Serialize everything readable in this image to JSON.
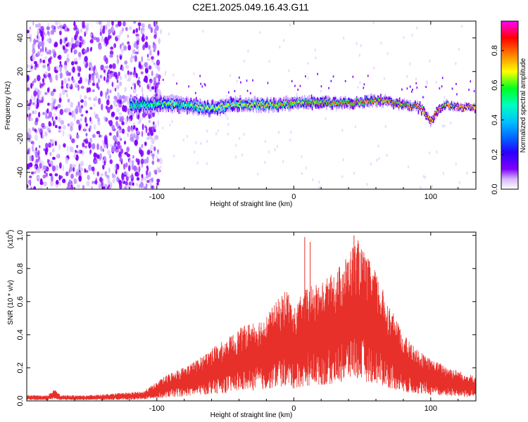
{
  "figure": {
    "title": "C2E1.2025.049.16.43.G11"
  },
  "chart_data": [
    {
      "type": "heatmap",
      "title": "C2E1.2025.049.16.43.G11",
      "xlabel": "Height of straight line (km)",
      "ylabel": "Frequency (Hz)",
      "xlim": [
        -195,
        133
      ],
      "ylim": [
        -50,
        50
      ],
      "x_ticks": [
        -100,
        0,
        100
      ],
      "x_tick_labels": [
        "-100",
        "0",
        "100"
      ],
      "y_ticks": [
        -40,
        -20,
        0,
        20,
        40
      ],
      "y_tick_labels": [
        "-40",
        "-20",
        "0",
        "20",
        "40"
      ],
      "colorbar": {
        "label": "Normalized spectral amplitude",
        "range": [
          0,
          0.97
        ],
        "ticks": [
          0.0,
          0.2,
          0.4,
          0.6,
          0.8
        ],
        "tick_labels": [
          "0.0",
          "0.2",
          "0.4",
          "0.6",
          "0.8"
        ],
        "colormap": [
          "#ffffff",
          "#c8a0ff",
          "#8000ff",
          "#2a00ff",
          "#0080ff",
          "#00ffff",
          "#00ff40",
          "#ffff00",
          "#ff8000",
          "#ff0000",
          "#ff00ff"
        ]
      },
      "features": {
        "noise_region_x": [
          -195,
          -105
        ],
        "ridge_start_x": -120,
        "ridge_center_freq": [
          [
            -120,
            0
          ],
          [
            -100,
            1
          ],
          [
            -80,
            0
          ],
          [
            -60,
            -2
          ],
          [
            -40,
            1
          ],
          [
            -20,
            0
          ],
          [
            0,
            1
          ],
          [
            20,
            2
          ],
          [
            40,
            1
          ],
          [
            60,
            3
          ],
          [
            80,
            0
          ],
          [
            90,
            -1
          ],
          [
            95,
            -4
          ],
          [
            100,
            -10
          ],
          [
            105,
            -3
          ],
          [
            110,
            0
          ],
          [
            120,
            -1
          ],
          [
            133,
            -2
          ]
        ]
      }
    },
    {
      "type": "line",
      "xlabel": "Height of straight line (km)",
      "ylabel": "SNR (10 * v/v)",
      "y_exponent_label": "(x10",
      "y_exponent": "4",
      "xlim": [
        -195,
        133
      ],
      "ylim": [
        0,
        1.02
      ],
      "x_ticks": [
        -100,
        0,
        100
      ],
      "x_tick_labels": [
        "-100",
        "0",
        "100"
      ],
      "y_ticks": [
        0.0,
        0.2,
        0.4,
        0.6,
        0.8,
        1.0
      ],
      "y_tick_labels": [
        "0.0",
        "0.2",
        "0.4",
        "0.6",
        "0.8",
        "1.0"
      ],
      "color": "#e8302a",
      "series": [
        {
          "envelope": [
            [
              -195,
              0.03
            ],
            [
              -180,
              0.03
            ],
            [
              -175,
              0.06
            ],
            [
              -170,
              0.03
            ],
            [
              -150,
              0.03
            ],
            [
              -130,
              0.04
            ],
            [
              -110,
              0.05
            ],
            [
              -100,
              0.1
            ],
            [
              -90,
              0.15
            ],
            [
              -80,
              0.18
            ],
            [
              -70,
              0.22
            ],
            [
              -60,
              0.28
            ],
            [
              -50,
              0.32
            ],
            [
              -40,
              0.38
            ],
            [
              -30,
              0.42
            ],
            [
              -20,
              0.45
            ],
            [
              -15,
              0.5
            ],
            [
              -10,
              0.55
            ],
            [
              -5,
              0.6
            ],
            [
              0,
              0.48
            ],
            [
              5,
              0.55
            ],
            [
              10,
              0.6
            ],
            [
              20,
              0.62
            ],
            [
              30,
              0.68
            ],
            [
              40,
              0.78
            ],
            [
              45,
              0.85
            ],
            [
              50,
              0.8
            ],
            [
              60,
              0.68
            ],
            [
              70,
              0.5
            ],
            [
              80,
              0.35
            ],
            [
              90,
              0.27
            ],
            [
              100,
              0.22
            ],
            [
              110,
              0.19
            ],
            [
              120,
              0.16
            ],
            [
              133,
              0.13
            ]
          ],
          "peaks": [
            [
              8,
              0.99
            ],
            [
              12,
              0.96
            ],
            [
              44,
              1.0
            ],
            [
              47,
              0.97
            ]
          ]
        }
      ]
    }
  ]
}
